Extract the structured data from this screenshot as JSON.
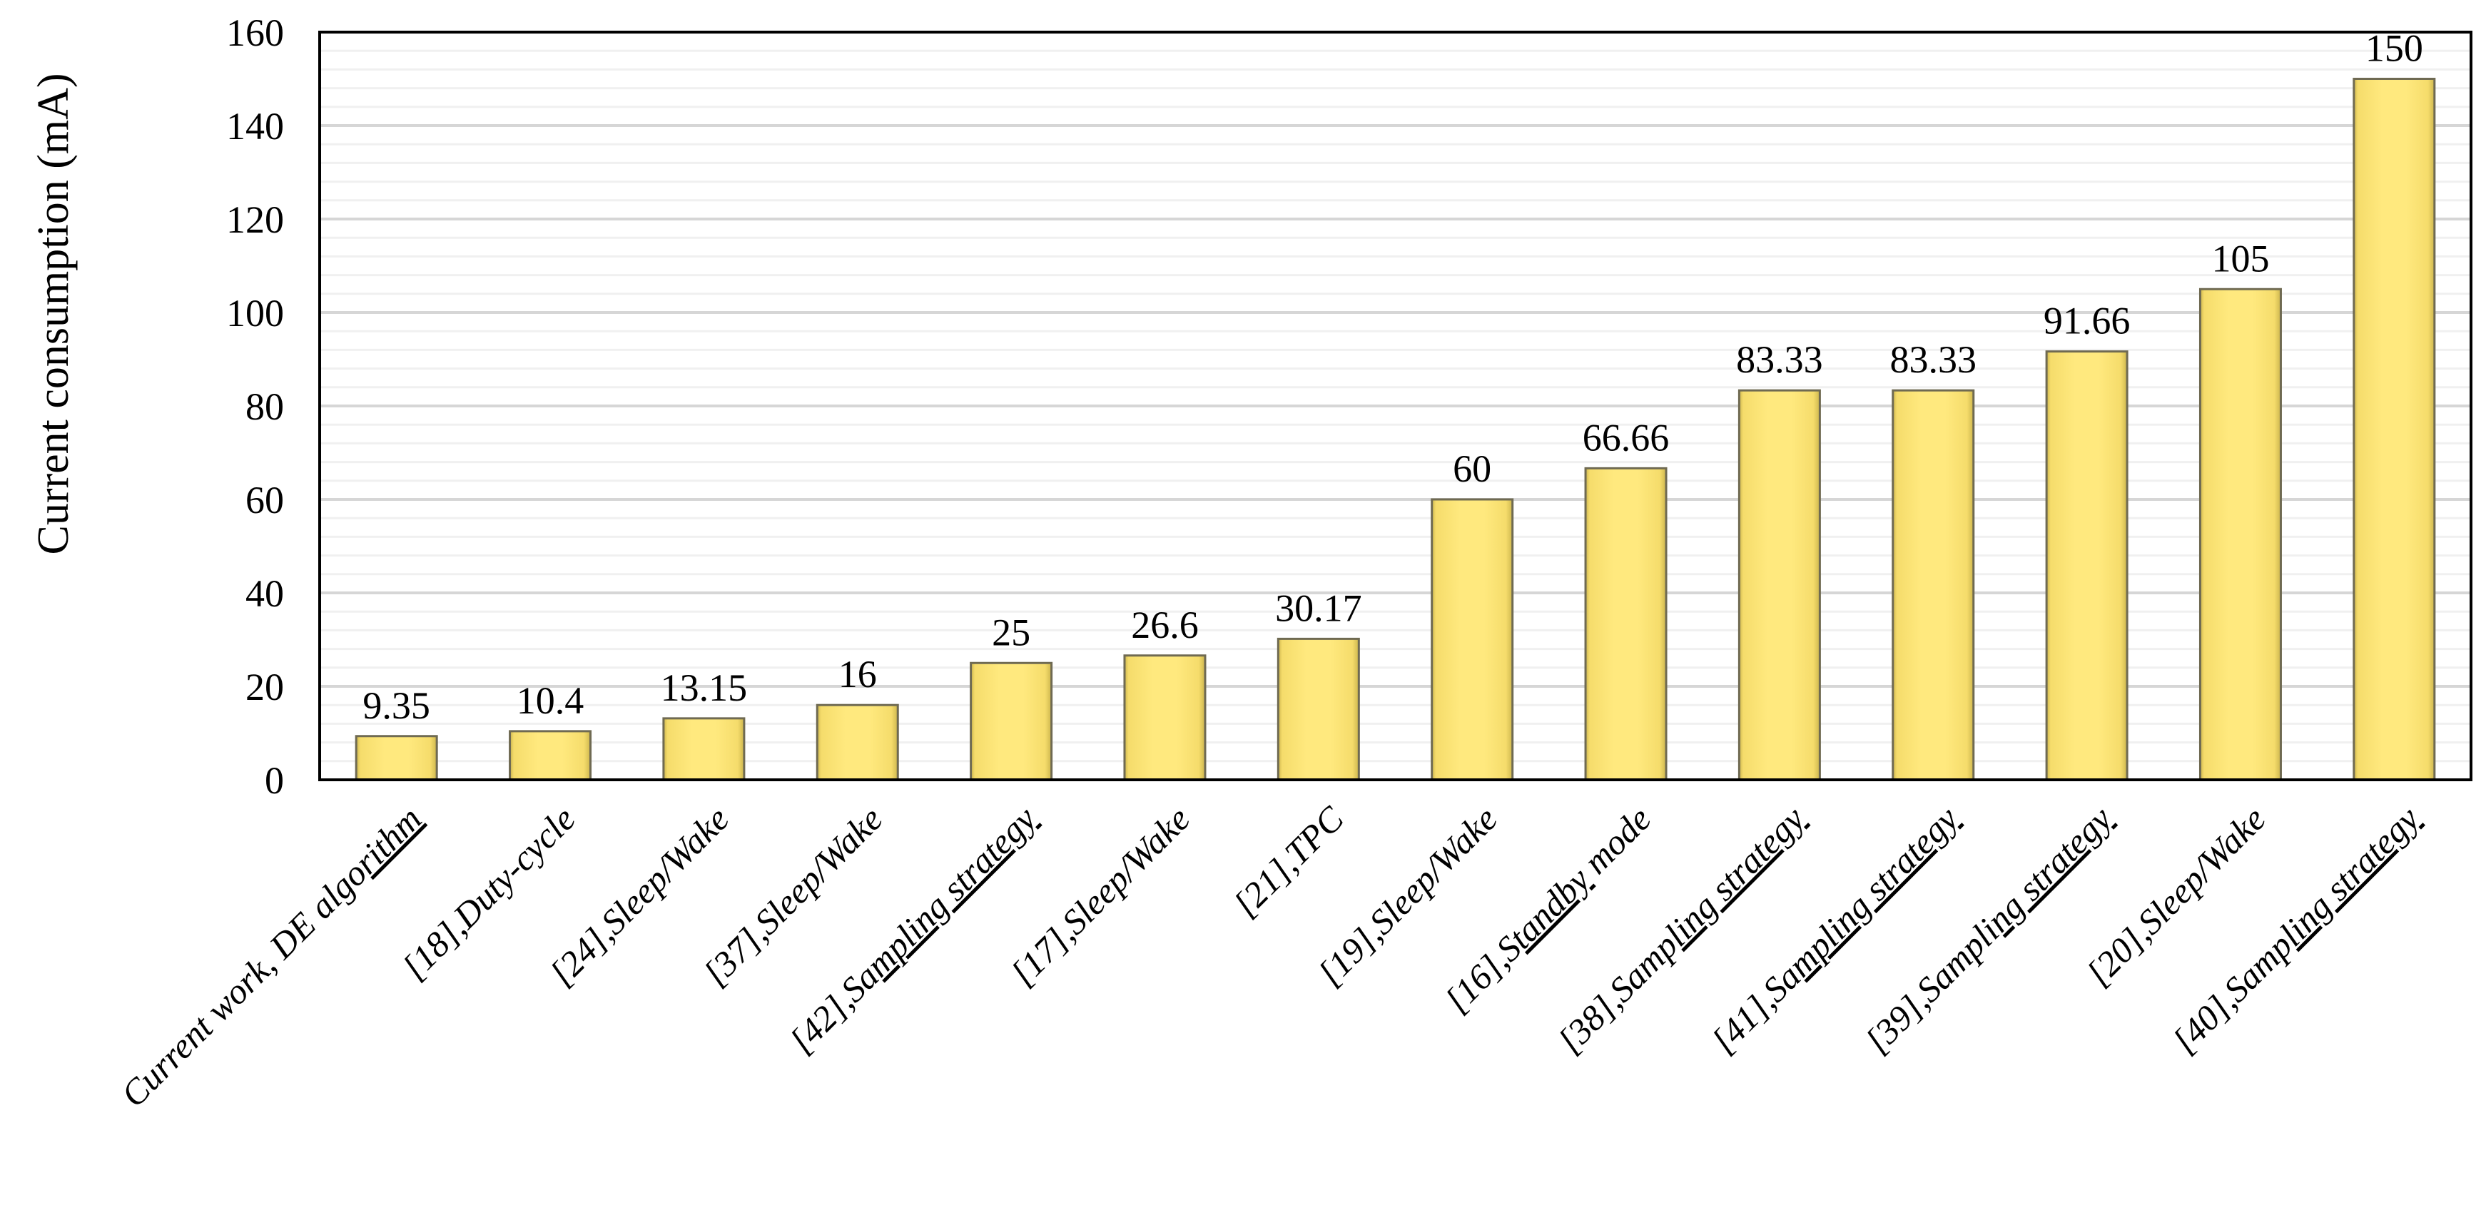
{
  "chart_data": {
    "type": "bar",
    "title": "",
    "xlabel": "",
    "ylabel": "Current consumption (mA)",
    "ylim": [
      0,
      160
    ],
    "y_major_step": 20,
    "y_minor_step": 4,
    "grid": "horizontal-major-and-minor",
    "legend": "none",
    "category_rotation_deg": 45,
    "y_tick_labels": [
      "0",
      "20",
      "40",
      "60",
      "80",
      "100",
      "120",
      "140",
      "160"
    ],
    "categories": [
      "Current work, DE algorithm",
      "[18],Duty-cycle",
      "[24],Sleep/Wake",
      "[37],Sleep/Wake",
      "[42],Sampling strategy",
      "[17],Sleep/Wake",
      "[21],TPC",
      "[19],Sleep/Wake",
      "[16],Standby mode",
      "[38],Sampling strategy",
      "[41],Sampling strategy",
      "[39],Sampling strategy",
      "[20],Sleep/Wake",
      "[40],Sampling strategy"
    ],
    "values": [
      9.35,
      10.4,
      13.15,
      16,
      25,
      26.6,
      30.17,
      60,
      66.66,
      83.33,
      83.33,
      91.66,
      105,
      150
    ],
    "value_labels": [
      "9.35",
      "10.4",
      "13.15",
      "16",
      "25",
      "26.6",
      "30.17",
      "60",
      "66.66",
      "83.33",
      "83.33",
      "91.66",
      "105",
      "150"
    ],
    "category_label_parts": [
      {
        "pre": "Current work, DE algo",
        "und": "rithm",
        "post": ""
      },
      {
        "pre": "[18],Duty-cycle",
        "und": "",
        "post": ""
      },
      {
        "pre": "[24],Sleep/Wake",
        "und": "",
        "post": ""
      },
      {
        "pre": "[37],Sleep/Wake",
        "und": "",
        "post": ""
      },
      {
        "pre": "[42],Sa",
        "und": "mpling strategy",
        "post": ""
      },
      {
        "pre": "[17],Sleep/Wake",
        "und": "",
        "post": ""
      },
      {
        "pre": "[21],TPC",
        "und": "",
        "post": ""
      },
      {
        "pre": "[19],Sleep/Wake",
        "und": "",
        "post": ""
      },
      {
        "pre": "[16],S",
        "und": "tandby",
        "post": " mode"
      },
      {
        "pre": "[38],Samp",
        "und": "ling strategy",
        "post": ""
      },
      {
        "pre": "[41],Sa",
        "und": "mpling strategy",
        "post": ""
      },
      {
        "pre": "[39],Sampli",
        "und": "ng strategy",
        "post": ""
      },
      {
        "pre": "[20],Sleep/Wake",
        "und": "",
        "post": ""
      },
      {
        "pre": "[40],Samp",
        "und": "ling strategy",
        "post": ""
      }
    ],
    "colors": {
      "bar_fill_center": "#FFE97E",
      "bar_fill_mid": "#F5DC6B",
      "bar_fill_edge": "#CDB64E",
      "bar_border": "#6F6A52",
      "minor_gridline": "#F0F0F0",
      "major_gridline": "#D6D6D6",
      "axis": "#000000",
      "text": "#000000",
      "background": "#FFFFFF"
    }
  }
}
